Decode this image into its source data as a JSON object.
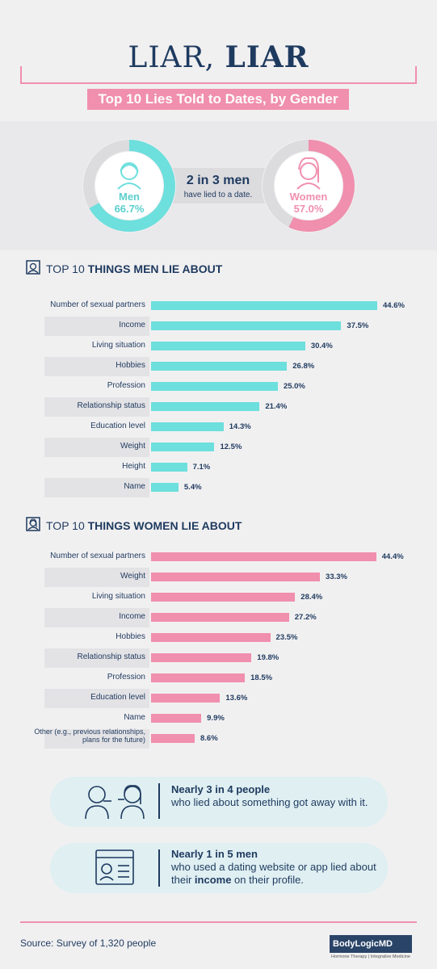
{
  "title": {
    "part1": "LIAR, ",
    "part2": "LIAR"
  },
  "subtitle": "Top 10 Lies Told to Dates, by Gender",
  "hero": {
    "men_label": "Men",
    "men_value": "66.7%",
    "men_fraction": 0.667,
    "women_label": "Women",
    "women_value": "57.0%",
    "women_fraction": 0.57,
    "center_headline": "2 in 3 men",
    "center_sub": "have lied to a date."
  },
  "colors": {
    "men": "#6ddfdd",
    "women": "#f08fae",
    "navy": "#1e3a5f",
    "ring_track": "#dcdbde"
  },
  "chart_data": [
    {
      "type": "bar",
      "title_prefix": "TOP 10 ",
      "title_bold": "THINGS MEN LIE ABOUT",
      "orientation": "horizontal",
      "categories": [
        "Number of sexual partners",
        "Income",
        "Living situation",
        "Hobbies",
        "Profession",
        "Relationship status",
        "Education level",
        "Weight",
        "Height",
        "Name"
      ],
      "values": [
        44.6,
        37.5,
        30.4,
        26.8,
        25.0,
        21.4,
        14.3,
        12.5,
        7.1,
        5.4
      ],
      "labels": [
        "44.6%",
        "37.5%",
        "30.4%",
        "26.8%",
        "25.0%",
        "21.4%",
        "14.3%",
        "12.5%",
        "7.1%",
        "5.4%"
      ],
      "unit": "%",
      "color": "#6ddfdd"
    },
    {
      "type": "bar",
      "title_prefix": "TOP 10 ",
      "title_bold": "THINGS WOMEN LIE ABOUT",
      "orientation": "horizontal",
      "categories": [
        "Number of sexual partners",
        "Weight",
        "Living situation",
        "Income",
        "Hobbies",
        "Relationship status",
        "Profession",
        "Education level",
        "Name",
        "Other (e.g., previous relationships, plans for the future)"
      ],
      "values": [
        44.4,
        33.3,
        28.4,
        27.2,
        23.5,
        19.8,
        18.5,
        13.6,
        9.9,
        8.6
      ],
      "labels": [
        "44.4%",
        "33.3%",
        "28.4%",
        "27.2%",
        "23.5%",
        "19.8%",
        "18.5%",
        "13.6%",
        "9.9%",
        "8.6%"
      ],
      "unit": "%",
      "color": "#f08fae"
    }
  ],
  "callouts": [
    {
      "bold": "Nearly 3 in 4 people",
      "text": "who lied about something got away with it."
    },
    {
      "bold": "Nearly 1 in 5 men",
      "text_before": "who used a dating website or app lied about their ",
      "bold_inline": "income",
      "text_after": " on their profile."
    }
  ],
  "source": "Source: Survey of 1,320 people",
  "logo": {
    "name": "BodyLogicMD",
    "tagline": "Hormone Therapy | Integrative Medicine"
  }
}
